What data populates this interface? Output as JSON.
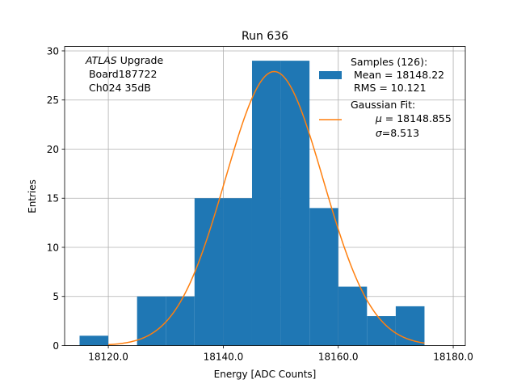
{
  "chart_data": {
    "type": "bar",
    "title": "Run 636",
    "xlabel": "Energy [ADC Counts]",
    "ylabel": "Entries",
    "xlim": [
      18112.4,
      18182.1
    ],
    "ylim": [
      0,
      30.45
    ],
    "grid": true,
    "legend_position": "top-right",
    "x_ticks": [
      18120,
      18140,
      18160,
      18180
    ],
    "x_tick_labels": [
      "18120.0",
      "18140.0",
      "18160.0",
      "18180.0"
    ],
    "y_ticks": [
      0,
      5,
      10,
      15,
      20,
      25,
      30
    ],
    "y_tick_labels": [
      "0",
      "5",
      "10",
      "15",
      "20",
      "25",
      "30"
    ],
    "bins": [
      {
        "x0": 18115,
        "x1": 18120,
        "value": 1
      },
      {
        "x0": 18120,
        "x1": 18125,
        "value": 0
      },
      {
        "x0": 18125,
        "x1": 18130,
        "value": 5
      },
      {
        "x0": 18130,
        "x1": 18135,
        "value": 5
      },
      {
        "x0": 18135,
        "x1": 18140,
        "value": 15
      },
      {
        "x0": 18140,
        "x1": 18145,
        "value": 15
      },
      {
        "x0": 18145,
        "x1": 18150,
        "value": 29
      },
      {
        "x0": 18150,
        "x1": 18155,
        "value": 29
      },
      {
        "x0": 18155,
        "x1": 18160,
        "value": 14
      },
      {
        "x0": 18160,
        "x1": 18165,
        "value": 6
      },
      {
        "x0": 18165,
        "x1": 18170,
        "value": 3
      },
      {
        "x0": 18170,
        "x1": 18175,
        "value": 4
      }
    ],
    "gaussian_fit": {
      "mu": 18148.855,
      "sigma": 8.513,
      "amplitude": 27.9,
      "x_range": [
        18120,
        18175
      ]
    },
    "annotation": {
      "line1_italic": "ATLAS",
      "line1_rest": " Upgrade",
      "line2": " Board187722",
      "line3": " Ch024 35dB"
    },
    "legend": {
      "hist_lines": [
        "Samples (126):",
        " Mean = 18148.22",
        " RMS = 10.121"
      ],
      "fit_line1": "Gaussian Fit:",
      "fit_mu_symbol": "μ",
      "fit_mu_rest": " = 18148.855",
      "fit_sigma_symbol": "σ",
      "fit_sigma_rest": "=8.513"
    },
    "colors": {
      "hist": "#1f77b4",
      "fit": "#ff7f0e",
      "grid": "#b0b0b0"
    }
  }
}
